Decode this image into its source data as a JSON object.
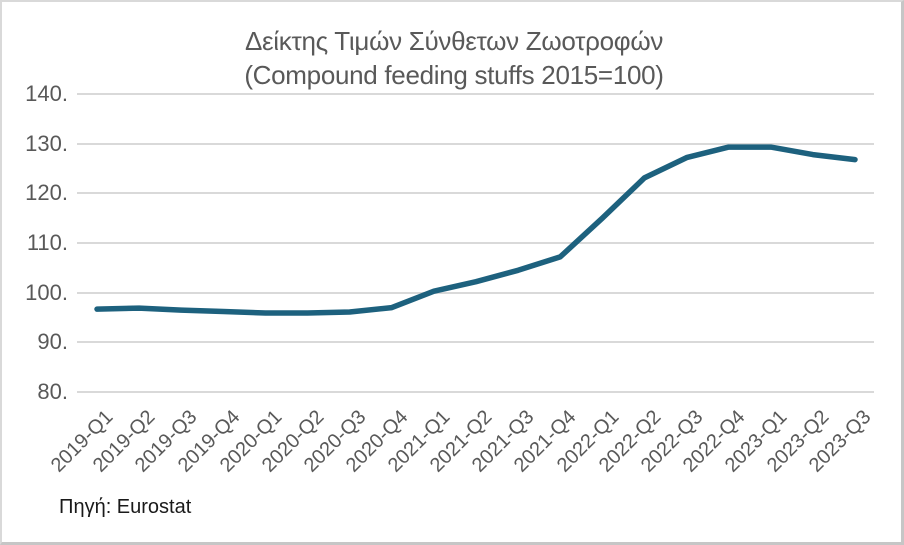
{
  "chart": {
    "title_line1": "Δείκτης Τιμών Σύνθετων Ζωοτροφών",
    "title_line2": "(Compound feeding stuffs 2015=100)",
    "source": "Πηγή: Eurostat",
    "colors": {
      "line": "#1d617e",
      "grid": "#d9d9d9",
      "axis_text": "#595959",
      "title_text": "#595959",
      "source_text": "#1a1a1a",
      "border": "#d9d9d9"
    }
  },
  "chart_data": {
    "type": "line",
    "title": "Δείκτης Τιμών Σύνθετων Ζωοτροφών",
    "subtitle": "(Compound feeding stuffs 2015=100)",
    "source": "Πηγή: Eurostat",
    "categories": [
      "2019-Q1",
      "2019-Q2",
      "2019-Q3",
      "2019-Q4",
      "2020-Q1",
      "2020-Q2",
      "2020-Q3",
      "2020-Q4",
      "2021-Q1",
      "2021-Q2",
      "2021-Q3",
      "2021-Q4",
      "2022-Q1",
      "2022-Q2",
      "2022-Q3",
      "2022-Q4",
      "2023-Q1",
      "2023-Q2",
      "2023-Q3"
    ],
    "values": [
      96.7,
      96.9,
      96.5,
      96.2,
      95.9,
      95.9,
      96.1,
      97.0,
      100.3,
      102.2,
      104.5,
      107.2,
      115.0,
      123.1,
      127.2,
      129.3,
      129.3,
      127.8,
      126.8
    ],
    "y_tick_labels": [
      "140.",
      "130.",
      "120.",
      "110.",
      "100.",
      "90.",
      "80."
    ],
    "y_tick_values": [
      140,
      130,
      120,
      110,
      100,
      90,
      80
    ],
    "ylim": [
      80,
      140
    ],
    "xlabel": "",
    "ylabel": "",
    "grid": true,
    "legend": false
  }
}
